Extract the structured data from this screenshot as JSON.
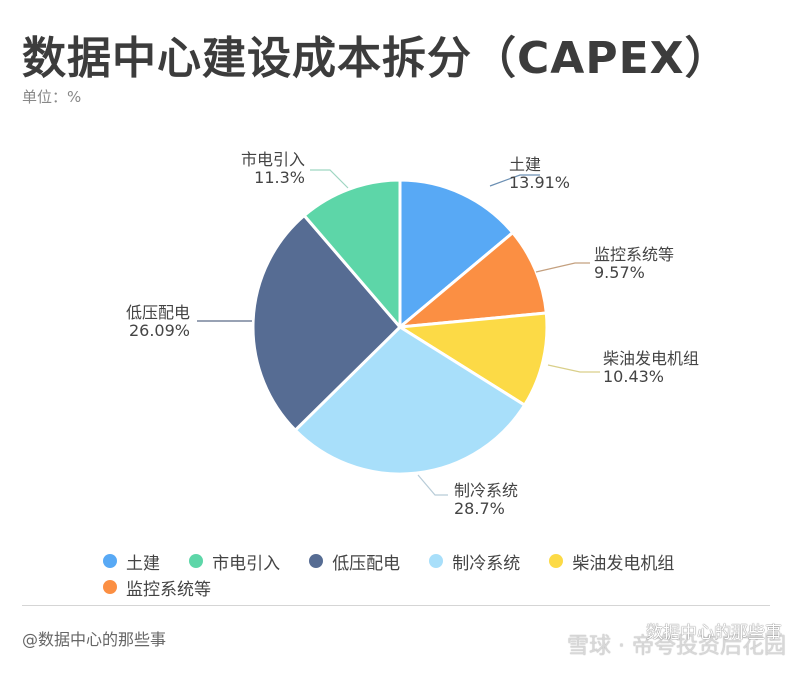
{
  "header": {
    "title": "数据中心建设成本拆分（CAPEX）",
    "unit": "单位：%"
  },
  "chart_data": {
    "type": "pie",
    "title": "数据中心建设成本拆分（CAPEX）",
    "subtitle": "单位：%",
    "categories": [
      "土建",
      "监控系统等",
      "柴油发电机组",
      "制冷系统",
      "低压配电",
      "市电引入"
    ],
    "values": [
      13.91,
      9.57,
      10.43,
      28.7,
      26.09,
      11.3
    ],
    "value_labels": [
      "13.91%",
      "9.57%",
      "10.43%",
      "28.7%",
      "26.09%",
      "11.3%"
    ],
    "colors": [
      "#58A9F5",
      "#FB8F43",
      "#FCDA46",
      "#A8DFFA",
      "#566C93",
      "#5DD6A8"
    ],
    "start_angle": "top, clockwise",
    "legend_position": "bottom",
    "legend_order": [
      "土建",
      "市电引入",
      "低压配电",
      "制冷系统",
      "柴油发电机组",
      "监控系统等"
    ]
  },
  "labels": [
    {
      "name": "土建",
      "value": "13.91%"
    },
    {
      "name": "监控系统等",
      "value": "9.57%"
    },
    {
      "name": "柴油发电机组",
      "value": "10.43%"
    },
    {
      "name": "制冷系统",
      "value": "28.7%"
    },
    {
      "name": "低压配电",
      "value": "26.09%"
    },
    {
      "name": "市电引入",
      "value": "11.3%"
    }
  ],
  "legend": [
    {
      "label": "土建",
      "color": "#58A9F5"
    },
    {
      "label": "市电引入",
      "color": "#5DD6A8"
    },
    {
      "label": "低压配电",
      "color": "#566C93"
    },
    {
      "label": "制冷系统",
      "color": "#A8DFFA"
    },
    {
      "label": "柴油发电机组",
      "color": "#FCDA46"
    },
    {
      "label": "监控系统等",
      "color": "#FB8F43"
    }
  ],
  "footer": {
    "source": "@数据中心的那些事",
    "watermark": "雪球 · 帝夸投资后花园",
    "watermark_overlay": "数据中心的那些事"
  }
}
